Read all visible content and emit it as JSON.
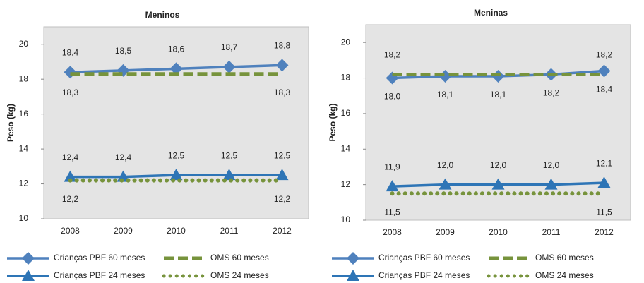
{
  "chart_data": [
    {
      "type": "line",
      "title": "Meninos",
      "ylabel": "Peso (kg)",
      "categories": [
        "2008",
        "2009",
        "2010",
        "2011",
        "2012"
      ],
      "ylim": [
        10,
        21
      ],
      "yticks": [
        10,
        12,
        14,
        16,
        18,
        20
      ],
      "series": [
        {
          "name": "Crianças PBF 60 meses",
          "color": "#4f81bd",
          "marker": "diamond",
          "dash": "solid",
          "values": [
            18.4,
            18.5,
            18.6,
            18.7,
            18.8
          ],
          "value_labels": [
            "18,4",
            "18,5",
            "18,6",
            "18,7",
            "18,8"
          ]
        },
        {
          "name": "OMS 60 meses",
          "color": "#77933c",
          "marker": null,
          "dash": "dashed",
          "values": [
            18.3,
            18.3,
            18.3,
            18.3,
            18.3
          ],
          "value_labels": [
            "18,3",
            null,
            null,
            null,
            "18,3"
          ]
        },
        {
          "name": "Crianças PBF 24 meses",
          "color": "#2e75b6",
          "marker": "triangle",
          "dash": "solid",
          "values": [
            12.4,
            12.4,
            12.5,
            12.5,
            12.5
          ],
          "value_labels": [
            "12,4",
            "12,4",
            "12,5",
            "12,5",
            "12,5"
          ]
        },
        {
          "name": "OMS 24 meses",
          "color": "#77933c",
          "marker": null,
          "dash": "dotted",
          "values": [
            12.2,
            12.2,
            12.2,
            12.2,
            12.2
          ],
          "value_labels": [
            "12,2",
            null,
            null,
            null,
            "12,2"
          ]
        }
      ]
    },
    {
      "type": "line",
      "title": "Meninas",
      "ylabel": "Peso (kg)",
      "categories": [
        "2008",
        "2009",
        "2010",
        "2011",
        "2012"
      ],
      "ylim": [
        10,
        21
      ],
      "yticks": [
        10,
        12,
        14,
        16,
        18,
        20
      ],
      "series": [
        {
          "name": "Crianças PBF 60 meses",
          "color": "#4f81bd",
          "marker": "diamond",
          "dash": "solid",
          "values": [
            18.0,
            18.1,
            18.1,
            18.2,
            18.4
          ],
          "value_labels": [
            "18,0",
            "18,1",
            "18,1",
            "18,2",
            "18,4"
          ]
        },
        {
          "name": "OMS 60 meses",
          "color": "#77933c",
          "marker": null,
          "dash": "dashed",
          "values": [
            18.2,
            18.2,
            18.2,
            18.2,
            18.2
          ],
          "value_labels": [
            "18,2",
            null,
            null,
            null,
            "18,2"
          ]
        },
        {
          "name": "Crianças PBF 24 meses",
          "color": "#2e75b6",
          "marker": "triangle",
          "dash": "solid",
          "values": [
            11.9,
            12.0,
            12.0,
            12.0,
            12.1
          ],
          "value_labels": [
            "11,9",
            "12,0",
            "12,0",
            "12,0",
            "12,1"
          ]
        },
        {
          "name": "OMS 24 meses",
          "color": "#77933c",
          "marker": null,
          "dash": "dotted",
          "values": [
            11.5,
            11.5,
            11.5,
            11.5,
            11.5
          ],
          "value_labels": [
            "11,5",
            null,
            null,
            null,
            "11,5"
          ]
        }
      ]
    }
  ]
}
